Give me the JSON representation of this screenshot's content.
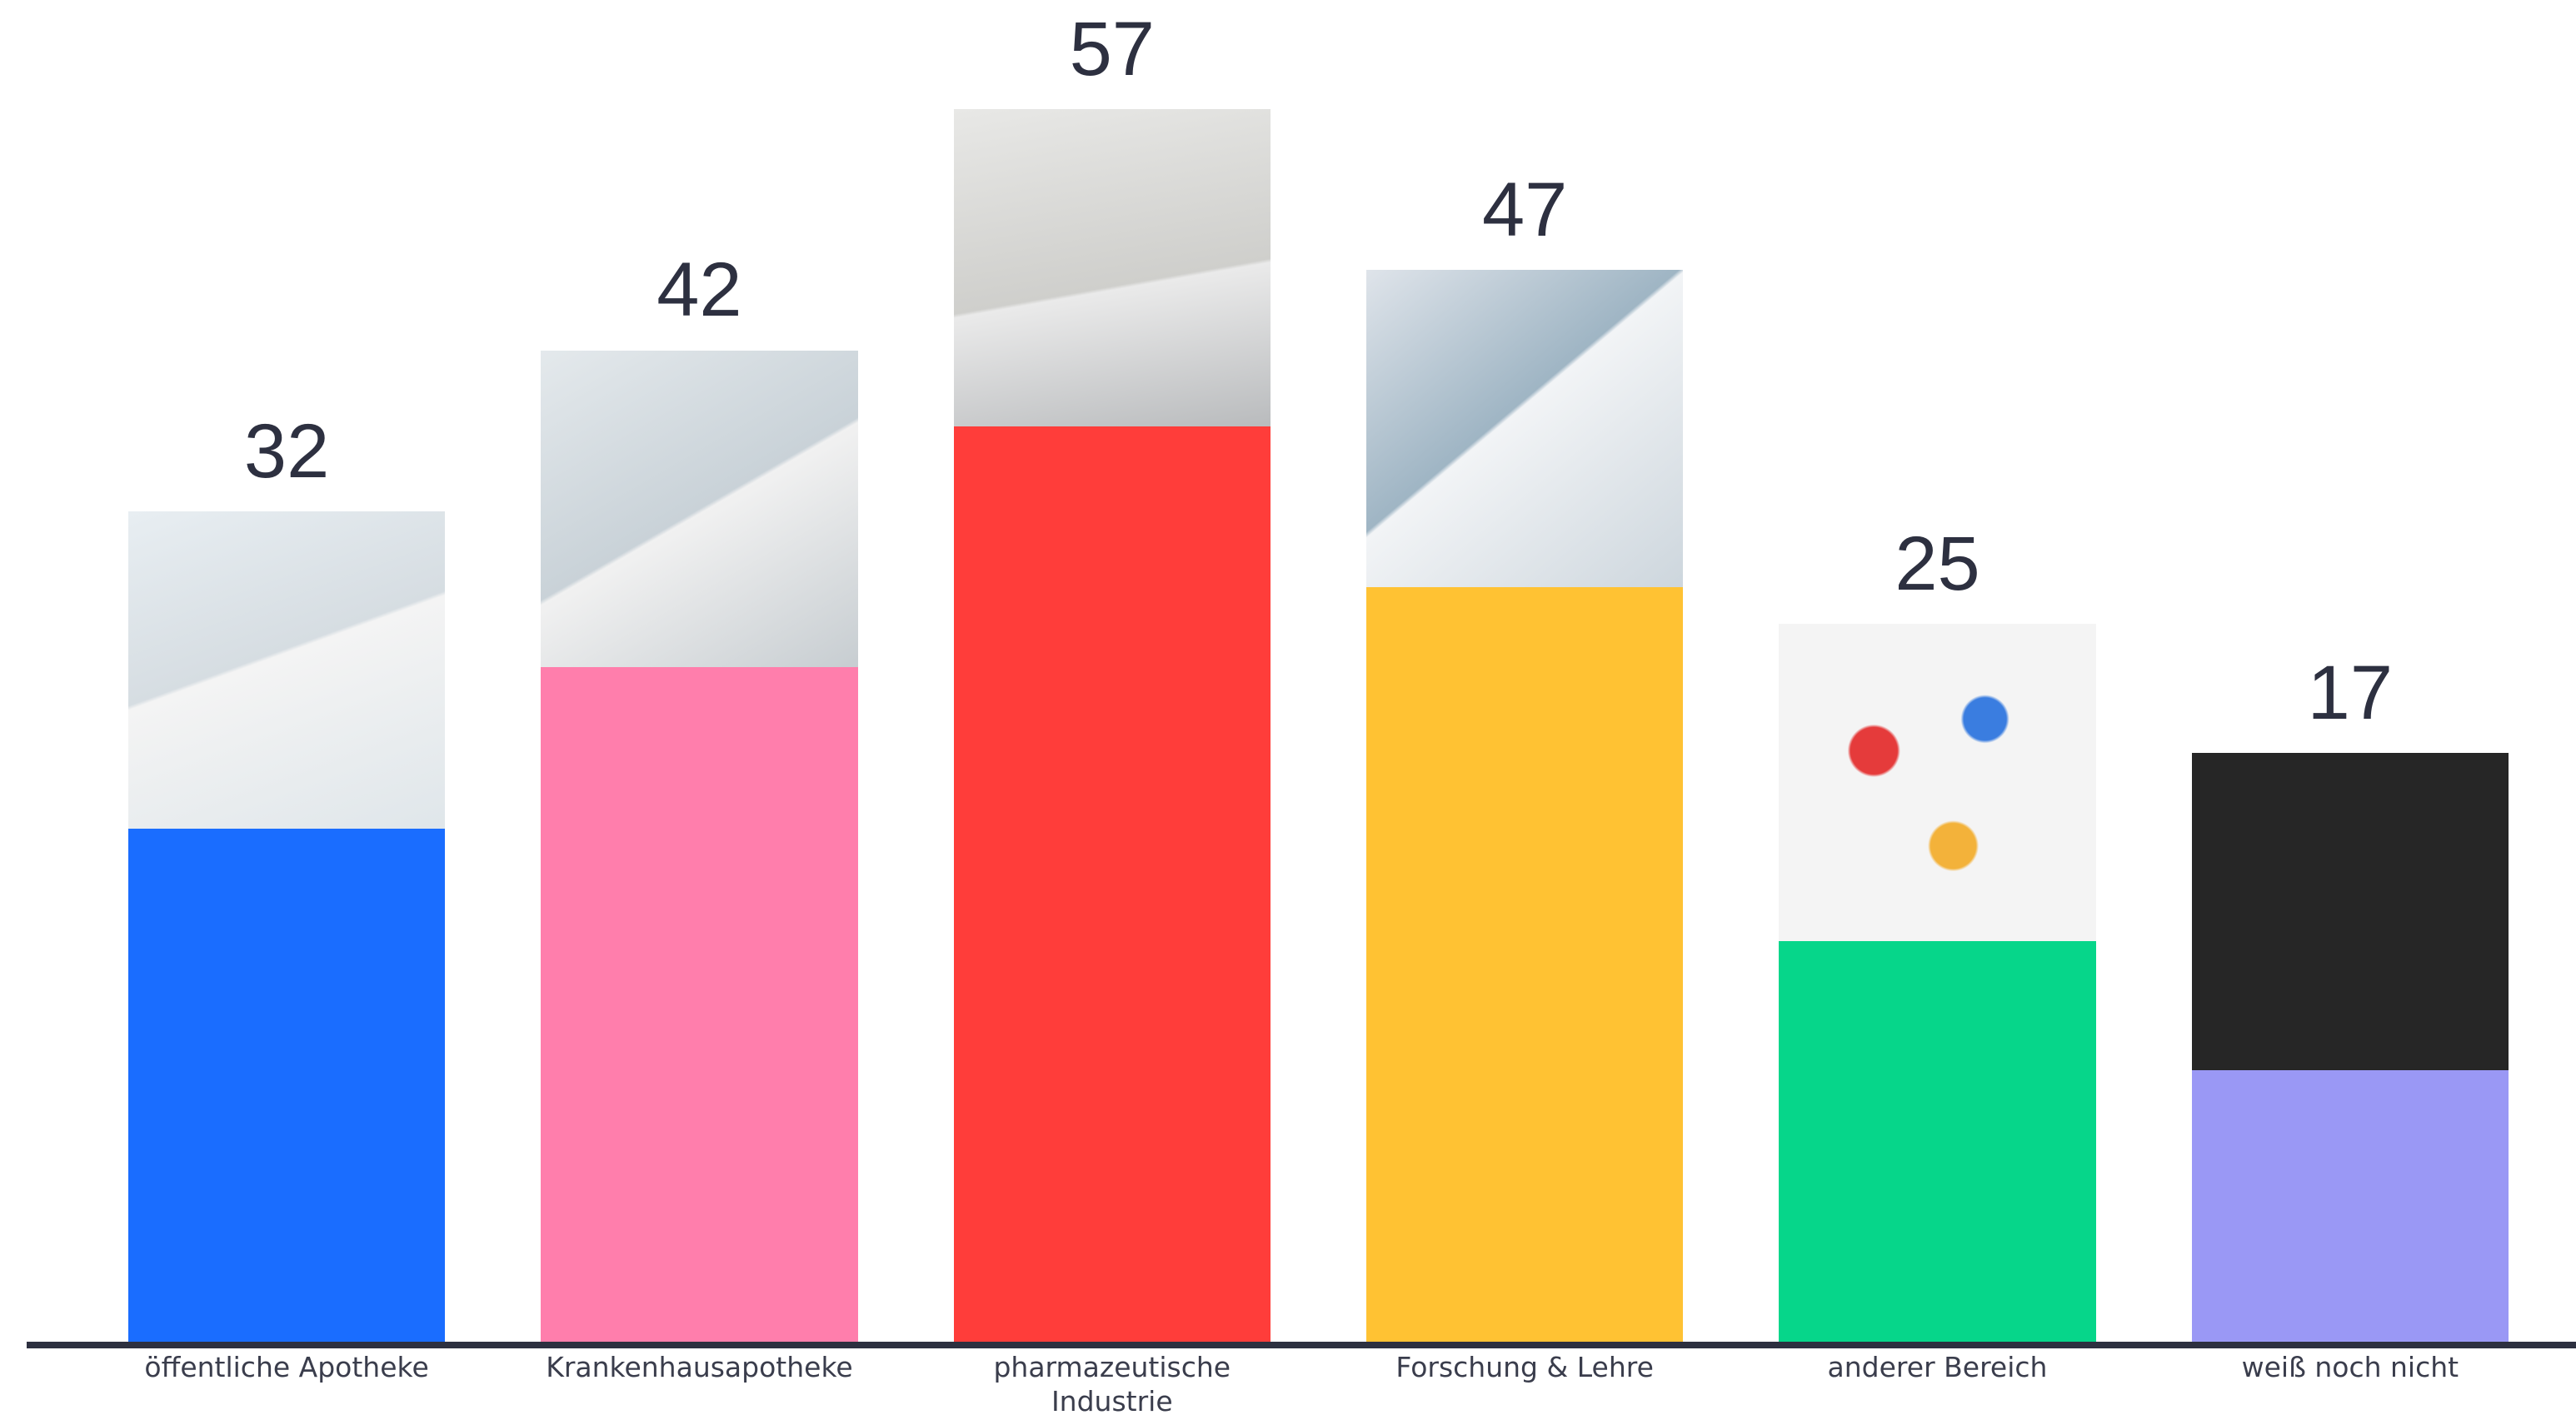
{
  "chart_data": {
    "type": "bar",
    "categories": [
      "öffentliche Apotheke",
      "Krankenhausapotheke",
      "pharmazeutische Industrie",
      "Forschung & Lehre",
      "anderer Bereich",
      "weiß noch nicht"
    ],
    "values": [
      32,
      42,
      57,
      47,
      25,
      17
    ],
    "colors": [
      "#1a6dff",
      "#ff7eac",
      "#ff3d3a",
      "#ffc233",
      "#06d68a",
      "#9a98f5"
    ]
  }
}
